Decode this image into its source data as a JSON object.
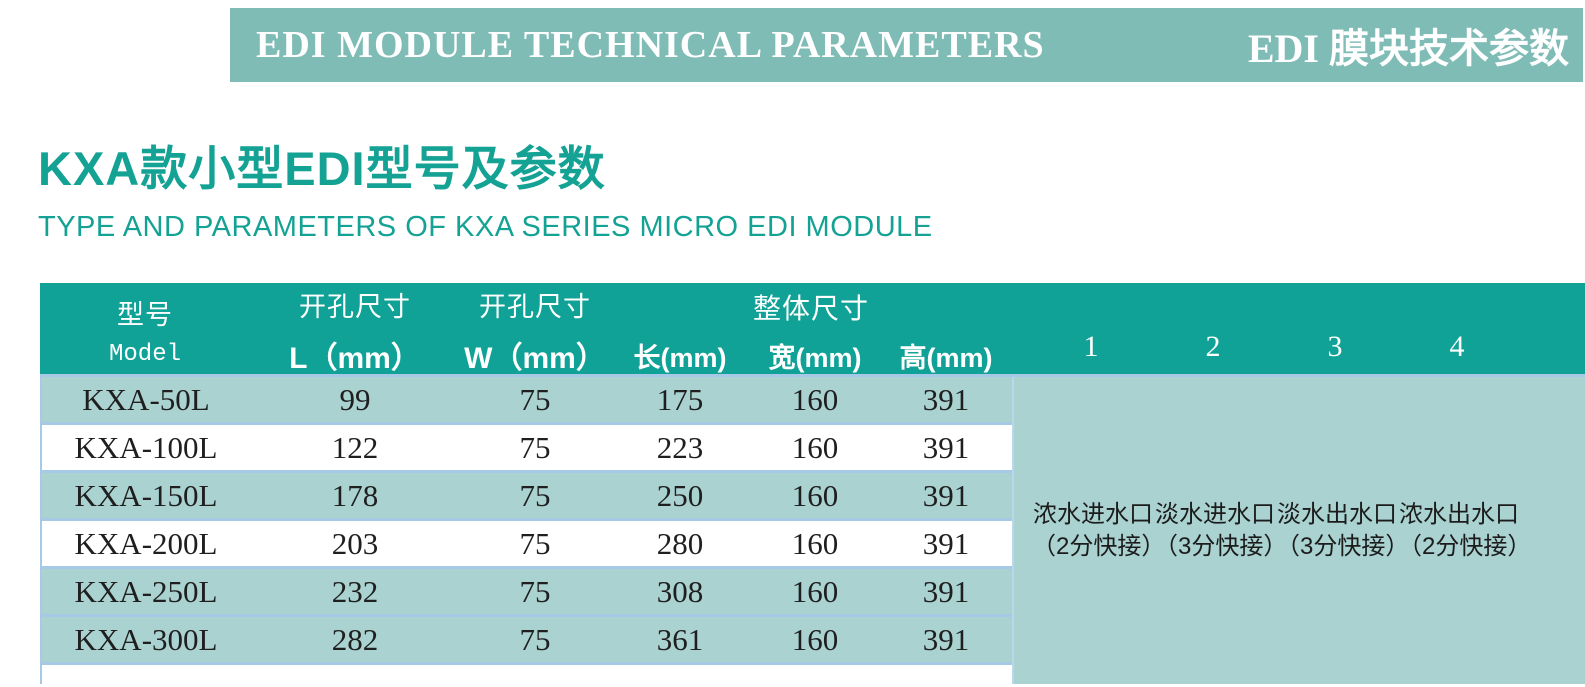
{
  "colors": {
    "banner_bg": "#7fbcb6",
    "accent": "#14a294",
    "header_bg": "#10a296",
    "row_shaded": "#a9d2d0",
    "row_white": "#ffffff",
    "divider": "#a6c9e5",
    "text_dark": "#1f1f1f"
  },
  "banner": {
    "title_en": "EDI MODULE TECHNICAL PARAMETERS",
    "title_zh": "EDI 膜块技术参数"
  },
  "section": {
    "title": "KXA款小型EDI型号及参数",
    "subtitle": "TYPE AND PARAMETERS OF KXA SERIES MICRO EDI MODULE"
  },
  "table": {
    "header": {
      "col_model": {
        "zh": "型号",
        "en": "Model"
      },
      "col_hole_l": {
        "zh": "开孔尺寸",
        "en": "L（mm）"
      },
      "col_hole_w": {
        "zh": "开孔尺寸",
        "en": "W（mm）"
      },
      "group_overall": "整体尺寸",
      "col_length": "长(mm)",
      "col_width": "宽(mm)",
      "col_height": "高(mm)",
      "port_cols": [
        "1",
        "2",
        "3",
        "4"
      ]
    },
    "rows": [
      {
        "model": "KXA-50L",
        "hole_l": "99",
        "hole_w": "75",
        "length": "175",
        "width": "160",
        "height": "391",
        "shaded": true
      },
      {
        "model": "KXA-100L",
        "hole_l": "122",
        "hole_w": "75",
        "length": "223",
        "width": "160",
        "height": "391",
        "shaded": false
      },
      {
        "model": "KXA-150L",
        "hole_l": "178",
        "hole_w": "75",
        "length": "250",
        "width": "160",
        "height": "391",
        "shaded": true
      },
      {
        "model": "KXA-200L",
        "hole_l": "203",
        "hole_w": "75",
        "length": "280",
        "width": "160",
        "height": "391",
        "shaded": false
      },
      {
        "model": "KXA-250L",
        "hole_l": "232",
        "hole_w": "75",
        "length": "308",
        "width": "160",
        "height": "391",
        "shaded": true
      },
      {
        "model": "KXA-300L",
        "hole_l": "282",
        "hole_w": "75",
        "length": "361",
        "width": "160",
        "height": "391",
        "shaded": true
      }
    ],
    "ports": [
      {
        "name": "浓水进水口",
        "spec": "（2分快接）"
      },
      {
        "name": "淡水进水口",
        "spec": "（3分快接）"
      },
      {
        "name": "淡水出水口",
        "spec": "（3分快接）"
      },
      {
        "name": "浓水出水口",
        "spec": "（2分快接）"
      }
    ]
  }
}
